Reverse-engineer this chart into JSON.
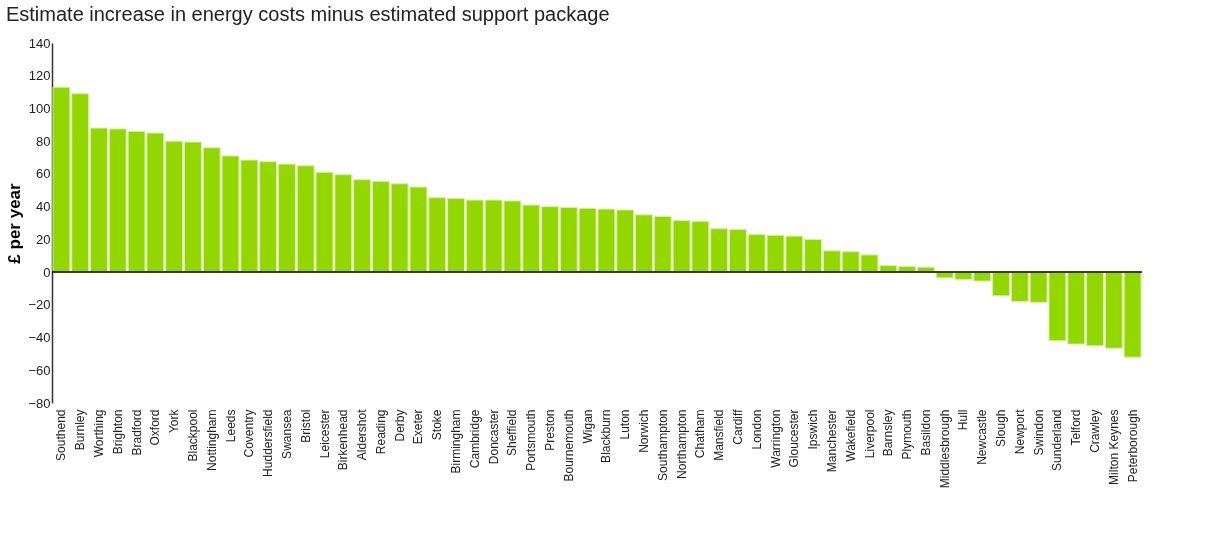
{
  "chart_data": {
    "type": "bar",
    "title": "Estimate increase in energy costs minus estimated support package",
    "ylabel": "£ per year",
    "categories": [
      "Southend",
      "Burnley",
      "Worthing",
      "Brighton",
      "Bradford",
      "Oxford",
      "York",
      "Blackpool",
      "Nottingham",
      "Leeds",
      "Coventry",
      "Huddersfield",
      "Swansea",
      "Bristol",
      "Leicester",
      "Birkenhead",
      "Aldershot",
      "Reading",
      "Derby",
      "Exeter",
      "Stoke",
      "Birmingham",
      "Cambridge",
      "Doncaster",
      "Sheffield",
      "Portsmouth",
      "Preston",
      "Bournemouth",
      "Wigan",
      "Blackburn",
      "Luton",
      "Norwich",
      "Southampton",
      "Northampton",
      "Chatham",
      "Mansfield",
      "Cardiff",
      "London",
      "Warrington",
      "Gloucester",
      "Ipswich",
      "Manchester",
      "Wakefield",
      "Liverpool",
      "Barnsley",
      "Plymouth",
      "Basildon",
      "Middlesbrough",
      "Hull",
      "Newcastle",
      "Slough",
      "Newport",
      "Swindon",
      "Sunderland",
      "Telford",
      "Crawley",
      "Milton Keynes",
      "Peterborough"
    ],
    "values": [
      113,
      109,
      88,
      87.5,
      86,
      85,
      80,
      79.5,
      76,
      71,
      68.5,
      67.5,
      66,
      65,
      61,
      59.5,
      56.5,
      55.5,
      54,
      52,
      45.5,
      45,
      44,
      44,
      43.5,
      41,
      40,
      39.5,
      39,
      38.5,
      38,
      35,
      34,
      31.5,
      31,
      26.5,
      26,
      23,
      22.5,
      22,
      20,
      13,
      12.5,
      10.5,
      4,
      3.5,
      3,
      -3.5,
      -4.5,
      -5.5,
      -14.5,
      -18,
      -18.5,
      -42,
      -44,
      -45,
      -46.5,
      -52
    ],
    "color": "#92d800",
    "ylim": [
      -80,
      140
    ],
    "yticks": [
      -80,
      -60,
      -40,
      -20,
      0,
      20,
      40,
      60,
      80,
      100,
      120,
      140
    ],
    "grid": false,
    "ref_lines": [
      {
        "axis": "y",
        "value": 0,
        "color": "#000000"
      }
    ]
  }
}
